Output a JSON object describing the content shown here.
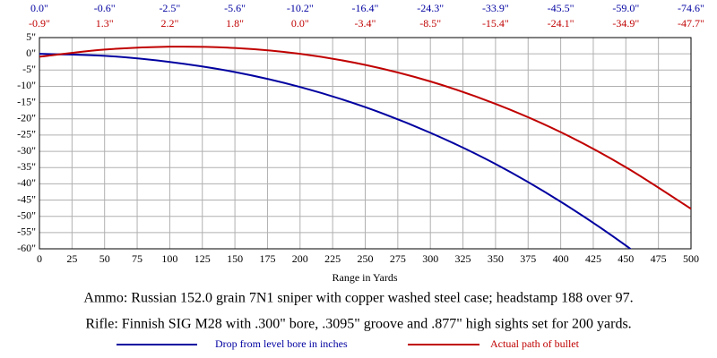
{
  "chart_data": {
    "type": "line",
    "x_label": "Range in Yards",
    "captions": [
      "Ammo: Russian 152.0 grain 7N1 sniper with copper washed steel case; headstamp 188 over 97.",
      "Rifle:  Finnish SIG M28 with .300\" bore, .3095\" groove and .877\" high sights set for 200 yards."
    ],
    "x": [
      0,
      50,
      100,
      150,
      200,
      250,
      300,
      350,
      400,
      450,
      500
    ],
    "series": [
      {
        "name": "Drop from level bore in inches",
        "color": "#0000a0",
        "values": [
          0.0,
          -0.6,
          -2.5,
          -5.6,
          -10.2,
          -16.4,
          -24.3,
          -33.9,
          -45.5,
          -59.0,
          -74.6
        ],
        "value_labels": [
          "0.0\"",
          "-0.6\"",
          "-2.5\"",
          "-5.6\"",
          "-10.2\"",
          "-16.4\"",
          "-24.3\"",
          "-33.9\"",
          "-45.5\"",
          "-59.0\"",
          "-74.6\""
        ]
      },
      {
        "name": "Actual path of bullet",
        "color": "#c00000",
        "values": [
          -0.9,
          1.3,
          2.2,
          1.8,
          0.0,
          -3.4,
          -8.5,
          -15.4,
          -24.1,
          -34.9,
          -47.7
        ],
        "value_labels": [
          "-0.9\"",
          "1.3\"",
          "2.2\"",
          "1.8\"",
          "0.0\"",
          "-3.4\"",
          "-8.5\"",
          "-15.4\"",
          "-24.1\"",
          "-34.9\"",
          "-47.7\""
        ]
      }
    ],
    "xlim": [
      0,
      500
    ],
    "xticks": [
      0,
      25,
      50,
      75,
      100,
      125,
      150,
      175,
      200,
      225,
      250,
      275,
      300,
      325,
      350,
      375,
      400,
      425,
      450,
      475,
      500
    ],
    "ylim": [
      -60,
      5
    ],
    "yticks": [
      {
        "value": 5,
        "label": "5\""
      },
      {
        "value": 0,
        "label": "0\""
      },
      {
        "value": -5,
        "label": "-5\""
      },
      {
        "value": -10,
        "label": "-10\""
      },
      {
        "value": -15,
        "label": "-15\""
      },
      {
        "value": -20,
        "label": "-20\""
      },
      {
        "value": -25,
        "label": "-25\""
      },
      {
        "value": -30,
        "label": "-30\""
      },
      {
        "value": -35,
        "label": "-35\""
      },
      {
        "value": -40,
        "label": "-40\""
      },
      {
        "value": -45,
        "label": "-45\""
      },
      {
        "value": -50,
        "label": "-50\""
      },
      {
        "value": -55,
        "label": "-55\""
      },
      {
        "value": -60,
        "label": "-60\""
      }
    ],
    "grid": true
  }
}
